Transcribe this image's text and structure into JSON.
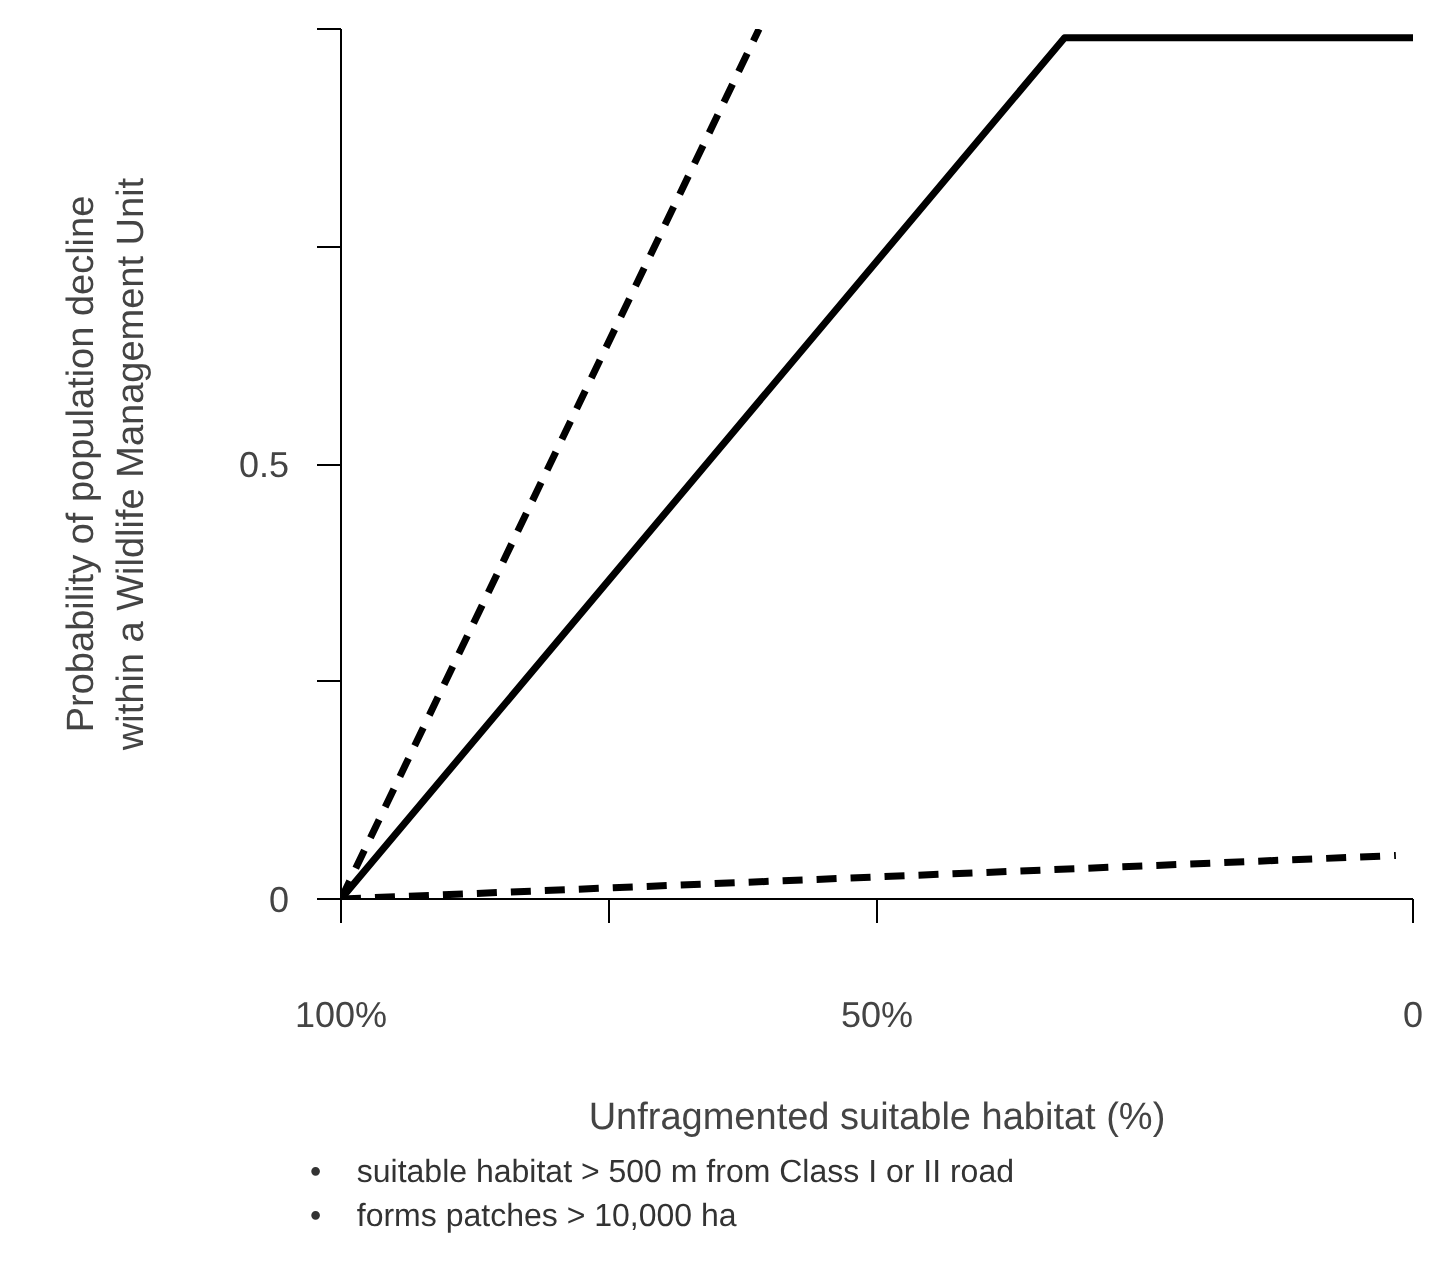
{
  "chart_data": {
    "type": "line",
    "xlabel": "Unfragmented suitable habitat (%)",
    "ylabel": "Probability of population decline\nwithin a Wildlife Management Unit",
    "xlim": [
      100,
      0
    ],
    "ylim": [
      0,
      1
    ],
    "xticks": [
      {
        "value": 100,
        "label": "100%"
      },
      {
        "value": 75,
        "label": null
      },
      {
        "value": 50,
        "label": "50%"
      },
      0
    ],
    "yticks": [
      0,
      {
        "value": 0.25,
        "label": null
      },
      0.5,
      {
        "value": 0.75,
        "label": null
      },
      {
        "value": 1,
        "label": null
      }
    ],
    "grid": false,
    "marker": "none",
    "series": [
      {
        "color": "#000000",
        "line_style": "dashed",
        "x": [
          100,
          61
        ],
        "values": [
          0,
          1.0
        ]
      },
      {
        "color": "#000000",
        "line_style": "solid",
        "x": [
          100,
          32.5,
          0
        ],
        "values": [
          0,
          0.99,
          0.99
        ]
      },
      {
        "color": "#000000",
        "line_style": "dashed",
        "x": [
          100,
          1.6
        ],
        "values": [
          0,
          0.05
        ]
      }
    ],
    "annotations": [
      "•   suitable habitat > 500 m from Class I or II road",
      "•   forms patches > 10,000 ha"
    ]
  }
}
